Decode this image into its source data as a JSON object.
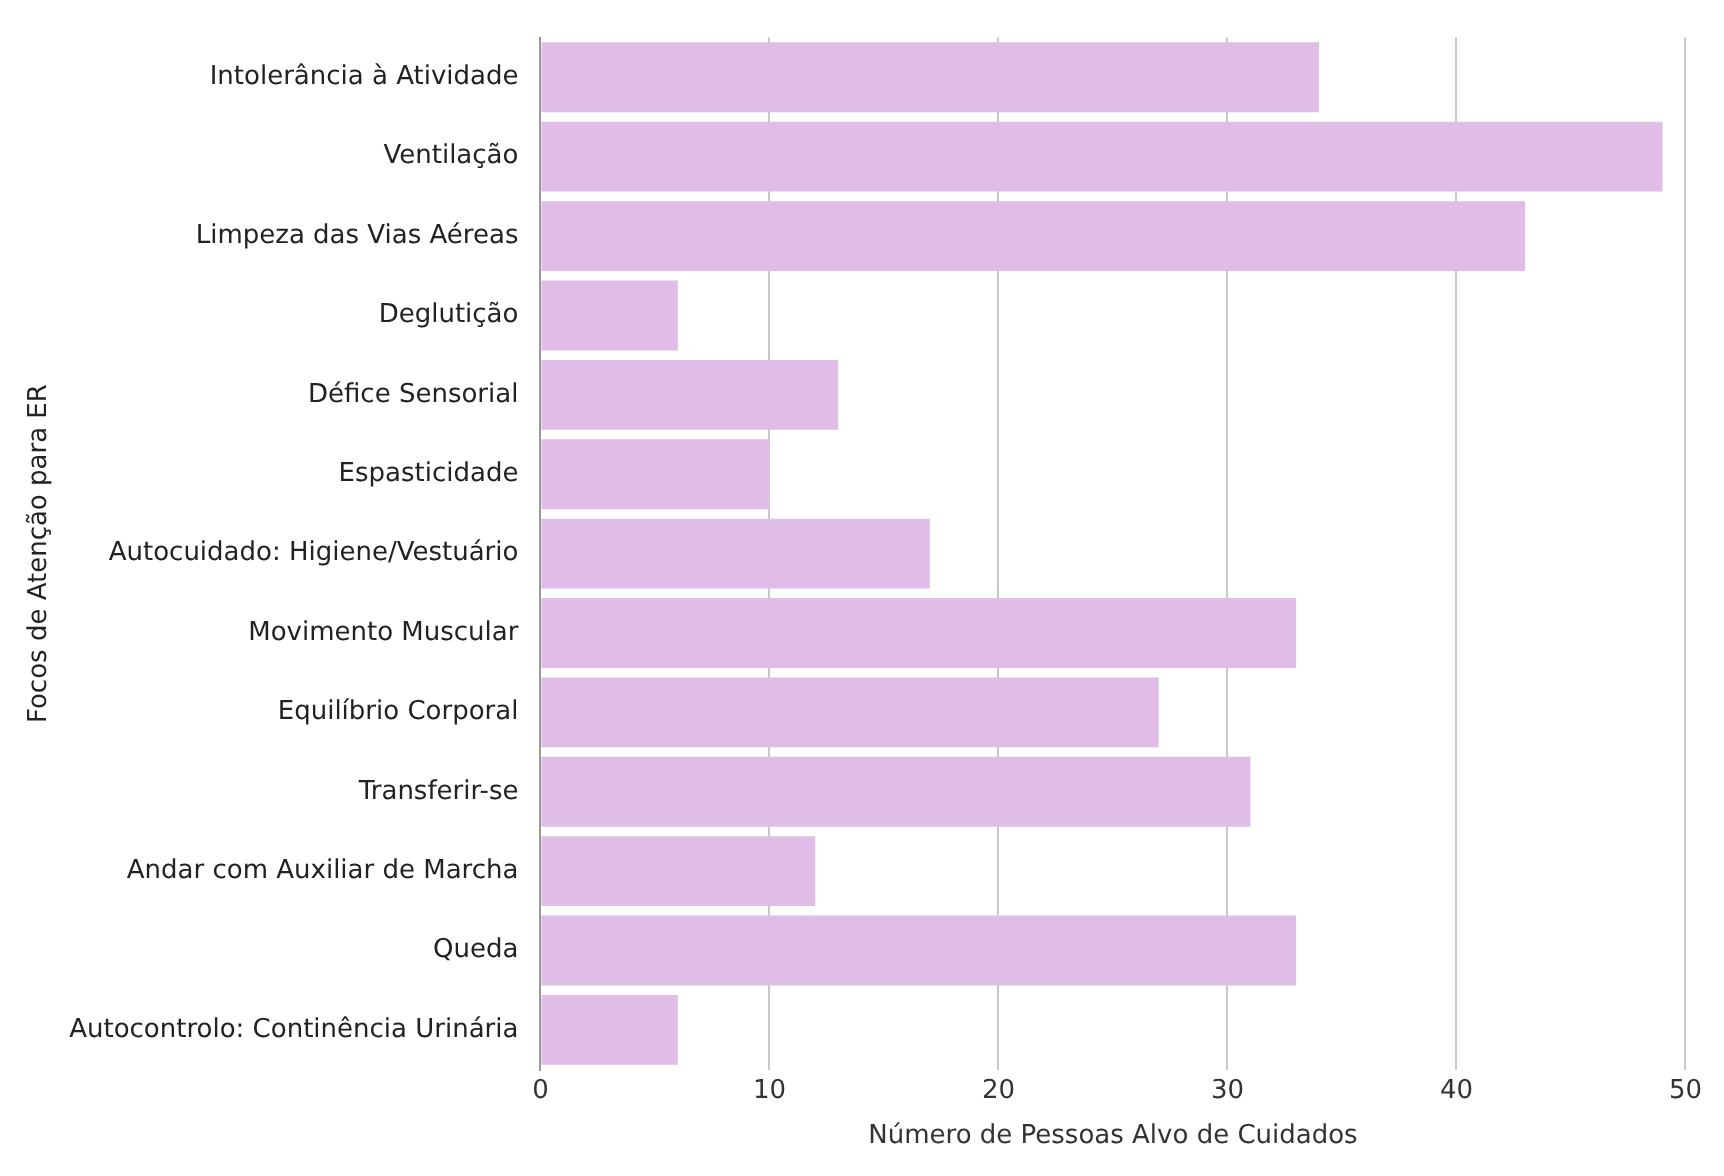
{
  "chart_data": {
    "type": "bar",
    "orientation": "horizontal",
    "xlabel": "Número de Pessoas Alvo de Cuidados",
    "ylabel": "Focos de Atenção para ER",
    "categories": [
      "Intolerância à Atividade",
      "Ventilação",
      "Limpeza das Vias Aéreas",
      "Deglutição",
      "Défice Sensorial",
      "Espasticidade",
      "Autocuidado: Higiene/Vestuário",
      "Movimento Muscular",
      "Equilíbrio Corporal",
      "Transferir-se",
      "Andar com Auxiliar de Marcha",
      "Queda",
      "Autocontrolo: Continência Urinária"
    ],
    "values": [
      34,
      49,
      43,
      6,
      13,
      10,
      17,
      33,
      27,
      31,
      12,
      33,
      6
    ],
    "color": "#dfbde6",
    "xlim": [
      0,
      50
    ],
    "xticks": [
      0,
      10,
      20,
      30,
      40,
      50
    ],
    "grid": "x"
  }
}
